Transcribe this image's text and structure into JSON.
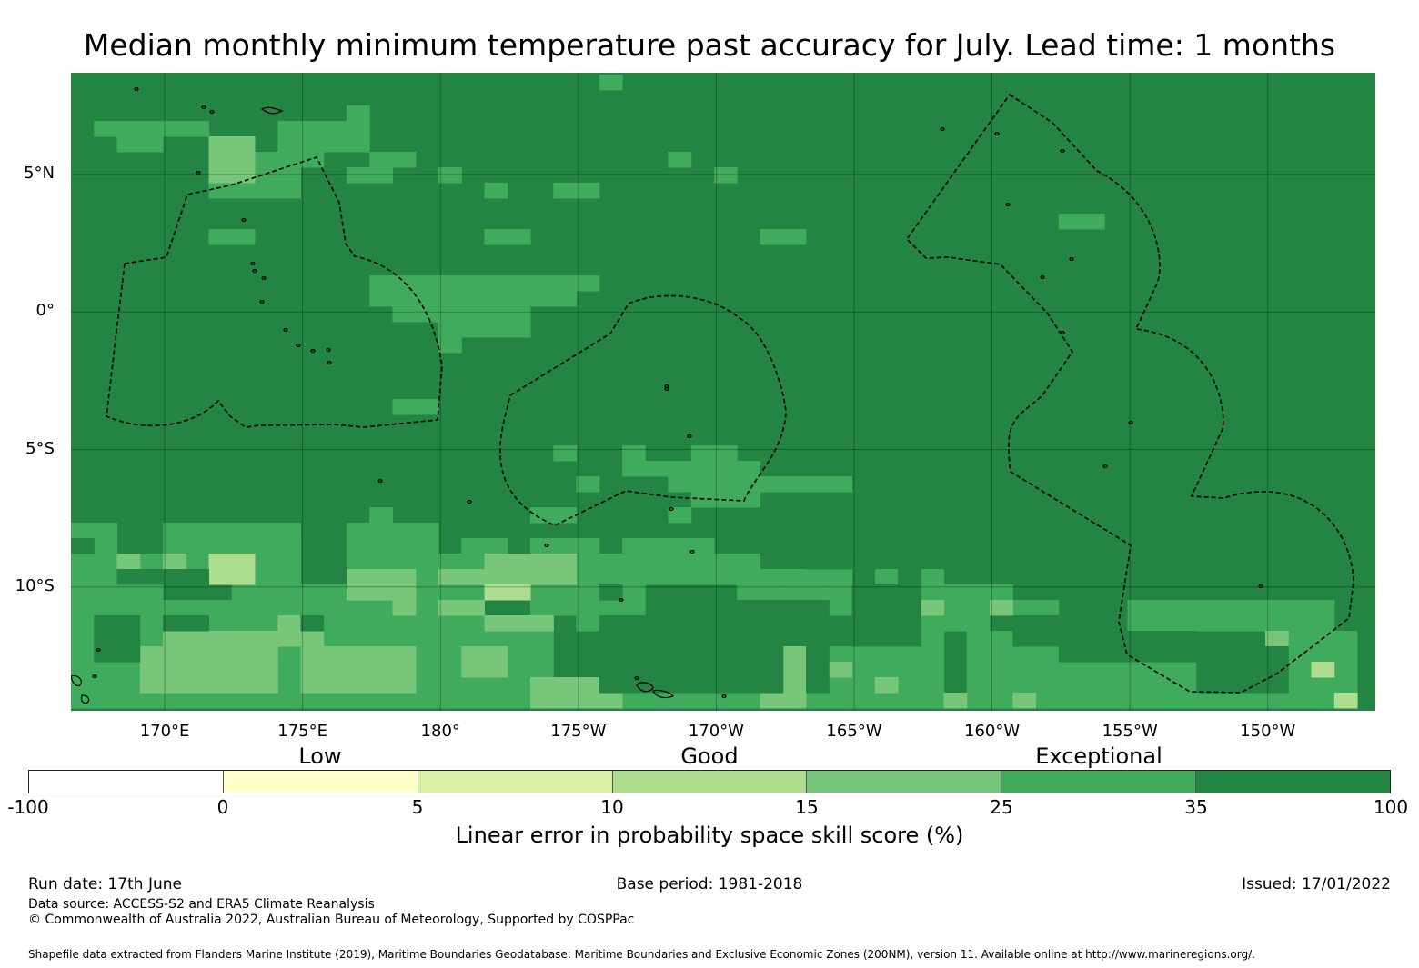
{
  "title": "Median monthly minimum temperature past accuracy for July. Lead time: 1 months",
  "map": {
    "lat_labels": [
      "5°N",
      "0°",
      "5°S",
      "10°S"
    ],
    "lat_values": [
      5,
      0,
      -5,
      -10
    ],
    "lon_labels": [
      "170°E",
      "175°E",
      "180°",
      "175°W",
      "170°W",
      "165°W",
      "160°W",
      "155°W",
      "150°W"
    ],
    "lon_values": [
      170,
      175,
      180,
      185,
      190,
      195,
      200,
      205,
      210
    ],
    "extent": {
      "lon_min": 166.6,
      "lon_max": 213.9,
      "lat_min": -14.5,
      "lat_max": 8.7
    },
    "background_color": "#238443"
  },
  "colorbar": {
    "category_labels": [
      {
        "label": "Low",
        "value": 2.5
      },
      {
        "label": "Good",
        "value": 12.5
      },
      {
        "label": "Exceptional",
        "value": 30
      }
    ],
    "ticks": [
      "-100",
      "0",
      "5",
      "10",
      "15",
      "25",
      "35",
      "100"
    ],
    "colors": [
      "#ffffff",
      "#ffffcc",
      "#d9f0a3",
      "#addd8e",
      "#78c679",
      "#41ab5d",
      "#238443"
    ],
    "title": "Linear error in probability space skill score (%)"
  },
  "footer": {
    "run_date": "Run date: 17th June",
    "base_period": "Base period: 1981-2018",
    "issued": "Issued: 17/01/2022",
    "data_source": "Data source: ACCESS-S2 and ERA5 Climate Reanalysis",
    "copyright": "© Commonwealth of Australia 2022, Australian Bureau of Meteorology, Supported by COSPPac",
    "shapefile": "Shapefile data extracted from Flanders Marine Institute (2019), Maritime Boundaries Geodatabase: Maritime Boundaries and Exclusive Economic Zones (200NM), version 11. Available online at http://www.marineregions.org/."
  }
}
